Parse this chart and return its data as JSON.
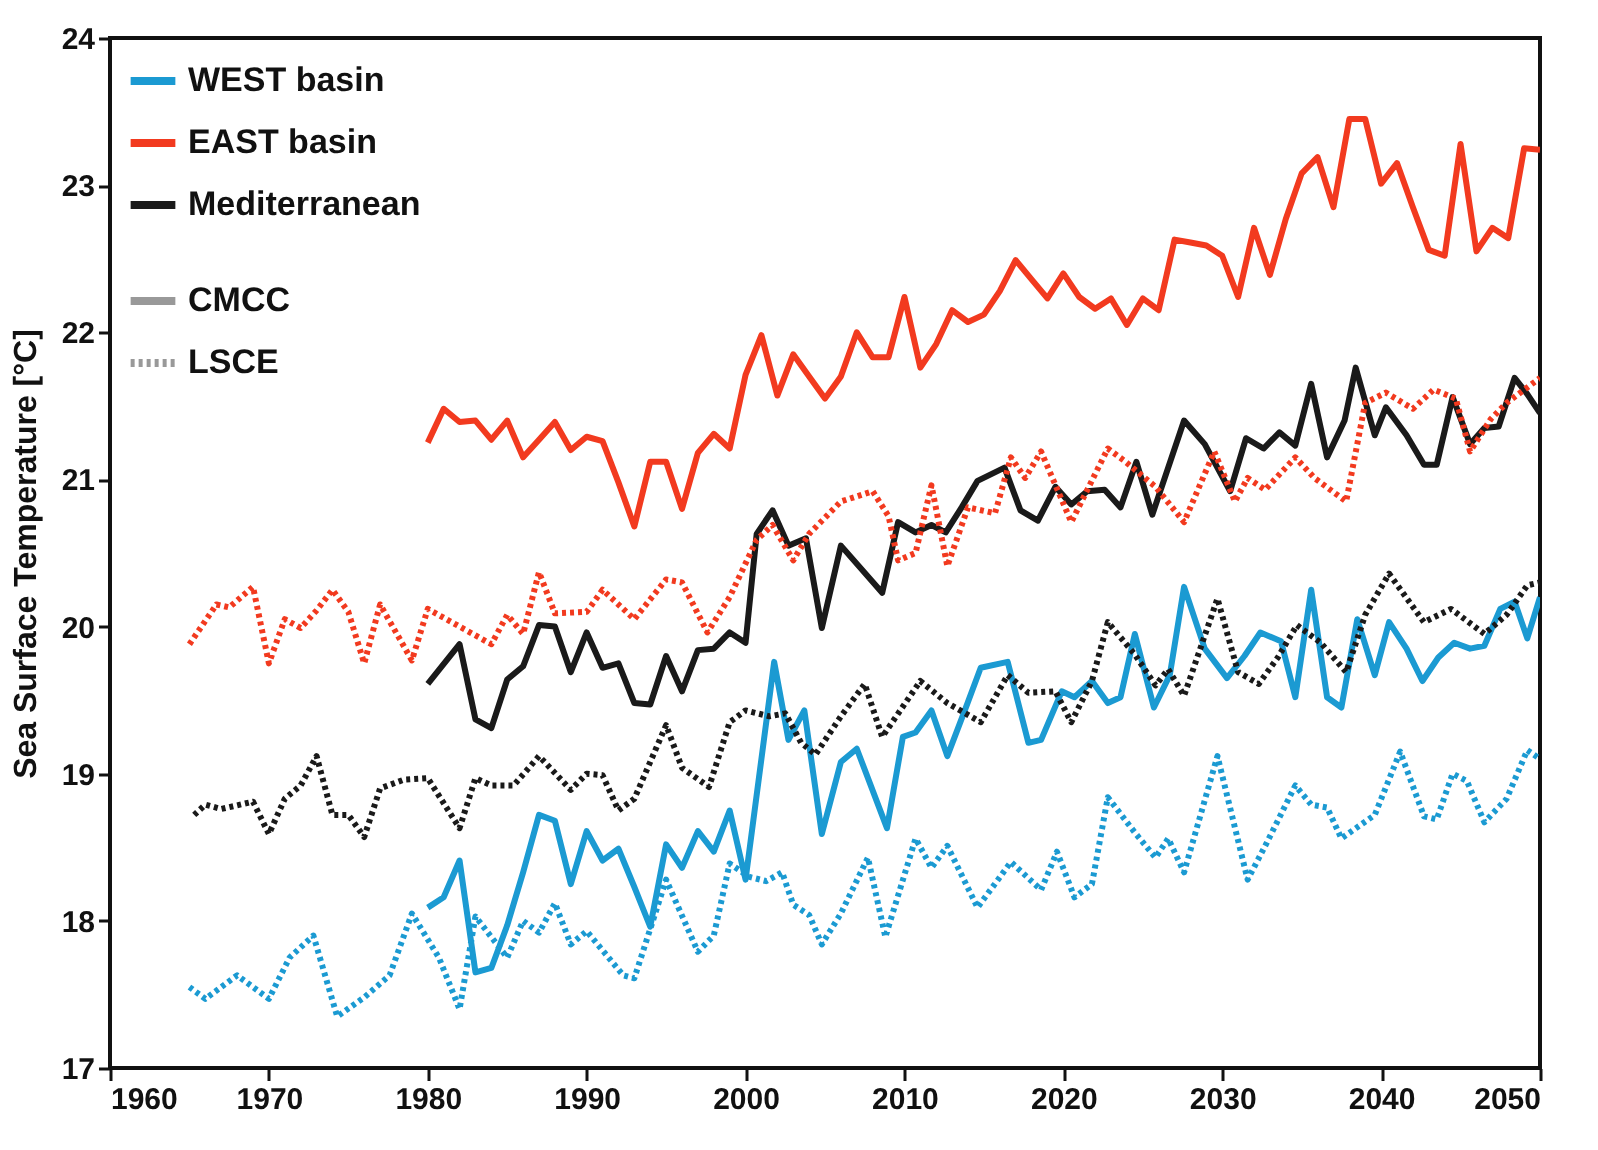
{
  "chart_data": {
    "type": "line",
    "ylabel": "Sea Surface Temperature [°C]",
    "xlim": [
      1960,
      2050
    ],
    "xticks": [
      1960,
      1970,
      1980,
      1990,
      2000,
      2010,
      2020,
      2030,
      2040,
      2050
    ],
    "ylim": [
      17,
      24
    ],
    "yticks": [
      17,
      18,
      19,
      20,
      21,
      22,
      23,
      24
    ],
    "grid": false,
    "legend": "top left",
    "marker": "none",
    "annotations": [
      "CMCC",
      "LSCE"
    ],
    "series": [
      {
        "name": "WEST basin",
        "color": "#1b9ad2",
        "line_style": "solid",
        "x": [
          1980,
          1981,
          1982,
          1983,
          1984,
          1985,
          1986,
          1987,
          1988,
          1989,
          1990,
          1991,
          1992,
          1993,
          1994,
          1995,
          1996,
          1997,
          1998,
          1999,
          2000,
          2001.8,
          2002.7,
          2003.7,
          2004.8,
          2006,
          2007,
          2008.9,
          2009.9,
          2010.7,
          2011.7,
          2012.7,
          2013.8,
          2014.8,
          2016.5,
          2017.8,
          2018.6,
          2019.9,
          2020.7,
          2021.8,
          2022.8,
          2023.6,
          2024.5,
          2025.7,
          2026.7,
          2027.6,
          2028.9,
          2030.3,
          2031.4,
          2032.4,
          2033.7,
          2034.6,
          2035.6,
          2036.6,
          2037.5,
          2038.5,
          2039.6,
          2040.5,
          2041.6,
          2042.6,
          2043.6,
          2044.6,
          2045.6,
          2046.5,
          2047.5,
          2048.4,
          2049.2,
          2050
        ],
        "values": [
          18.09,
          18.16,
          18.41,
          17.65,
          17.68,
          17.97,
          18.33,
          18.72,
          18.68,
          18.25,
          18.61,
          18.41,
          18.49,
          18.23,
          17.96,
          18.52,
          18.36,
          18.61,
          18.47,
          18.75,
          18.28,
          19.76,
          19.23,
          19.43,
          18.59,
          19.08,
          19.17,
          18.63,
          19.25,
          19.28,
          19.43,
          19.12,
          19.43,
          19.72,
          19.76,
          19.21,
          19.23,
          19.56,
          19.52,
          19.63,
          19.48,
          19.52,
          19.95,
          19.45,
          19.67,
          20.27,
          19.85,
          19.65,
          19.8,
          19.96,
          19.9,
          19.52,
          20.25,
          19.52,
          19.45,
          20.05,
          19.67,
          20.03,
          19.85,
          19.63,
          19.79,
          19.89,
          19.85,
          19.87,
          20.12,
          20.17,
          19.92,
          20.2
        ]
      },
      {
        "name": "EAST basin",
        "color": "#f23a1f",
        "line_style": "solid",
        "x": [
          1980,
          1981,
          1982,
          1983,
          1984,
          1985,
          1986,
          1987,
          1988,
          1989,
          1990,
          1991,
          1992,
          1993,
          1994,
          1995,
          1996,
          1997,
          1998,
          1999,
          2000,
          2001,
          2002,
          2003,
          2004,
          2005,
          2006,
          2007,
          2008,
          2009,
          2010,
          2011,
          2012,
          2013,
          2014,
          2015,
          2016,
          2017,
          2018,
          2019,
          2020,
          2021,
          2022,
          2023,
          2024,
          2025,
          2026,
          2027,
          2028,
          2029,
          2030,
          2031,
          2032,
          2033,
          2034,
          2035,
          2036,
          2037,
          2038,
          2039,
          2040,
          2041,
          2042,
          2043,
          2044,
          2045,
          2046,
          2047,
          2048,
          2049,
          2050
        ],
        "values": [
          21.25,
          21.48,
          21.39,
          21.4,
          21.27,
          21.4,
          21.15,
          21.27,
          21.39,
          21.2,
          21.29,
          21.26,
          20.98,
          20.68,
          21.12,
          21.12,
          20.8,
          21.18,
          21.31,
          21.21,
          21.71,
          21.98,
          21.57,
          21.85,
          21.7,
          21.55,
          21.7,
          22.0,
          21.83,
          21.83,
          22.24,
          21.76,
          21.92,
          22.15,
          22.07,
          22.12,
          22.28,
          22.49,
          22.36,
          22.23,
          22.4,
          22.24,
          22.16,
          22.23,
          22.05,
          22.23,
          22.15,
          22.63,
          22.61,
          22.59,
          22.52,
          22.24,
          22.71,
          22.39,
          22.77,
          23.08,
          23.19,
          22.85,
          23.45,
          23.45,
          23.01,
          23.15,
          22.85,
          22.56,
          22.52,
          23.28,
          22.55,
          22.71,
          22.64,
          23.25,
          23.24
        ]
      },
      {
        "name": "Mediterranean",
        "color": "#1a1a1a",
        "line_style": "solid",
        "x": [
          1980,
          1982,
          1983,
          1984,
          1985,
          1986,
          1987,
          1988,
          1989,
          1990,
          1991,
          1992,
          1993,
          1994,
          1995,
          1996,
          1997,
          1998,
          1999,
          2000,
          2000.7,
          2001.7,
          2002.7,
          2003.8,
          2004.8,
          2006,
          2008.6,
          2009.6,
          2010.7,
          2011.7,
          2012.6,
          2013.6,
          2014.6,
          2016.3,
          2017.3,
          2018.4,
          2019.5,
          2020.5,
          2021.5,
          2022.6,
          2023.6,
          2024.6,
          2025.6,
          2027.6,
          2028.9,
          2030.5,
          2031.5,
          2032.6,
          2033.6,
          2034.6,
          2035.6,
          2036.6,
          2037.7,
          2038.4,
          2039.6,
          2040.3,
          2041.6,
          2042.7,
          2043.5,
          2044.5,
          2045.6,
          2046.5,
          2047.4,
          2048.4,
          2049.2,
          2050
        ],
        "values": [
          19.61,
          19.88,
          19.37,
          19.31,
          19.64,
          19.73,
          20.01,
          20.0,
          19.69,
          19.96,
          19.72,
          19.75,
          19.48,
          19.47,
          19.8,
          19.56,
          19.84,
          19.85,
          19.96,
          19.89,
          20.63,
          20.79,
          20.55,
          20.6,
          19.99,
          20.55,
          20.23,
          20.71,
          20.64,
          20.69,
          20.64,
          20.81,
          20.99,
          21.08,
          20.79,
          20.72,
          20.95,
          20.83,
          20.92,
          20.93,
          20.81,
          21.12,
          20.76,
          21.4,
          21.24,
          20.92,
          21.28,
          21.21,
          21.32,
          21.23,
          21.65,
          21.15,
          21.4,
          21.76,
          21.3,
          21.49,
          21.3,
          21.1,
          21.1,
          21.56,
          21.24,
          21.35,
          21.36,
          21.69,
          21.58,
          21.45
        ]
      },
      {
        "color": "#1b9ad2",
        "line_style": "dotted",
        "x": [
          1965,
          1966,
          1968,
          1970,
          1971.3,
          1972.8,
          1974.3,
          1976,
          1977.6,
          1979,
          1980.7,
          1982,
          1983,
          1985,
          1986,
          1987,
          1988,
          1989,
          1990,
          1992.3,
          1993,
          1995,
          1997,
          1998,
          1999,
          2000.2,
          2001.3,
          2002.3,
          2003,
          2004,
          2004.8,
          2006,
          2007.7,
          2008.8,
          2010.7,
          2011.7,
          2012.7,
          2014.6,
          2016.7,
          2018.6,
          2019.6,
          2020.7,
          2021.8,
          2022.8,
          2024.5,
          2025.8,
          2026.6,
          2027.6,
          2029.7,
          2031.6,
          2032.8,
          2034.6,
          2035.6,
          2036.6,
          2037.5,
          2039.6,
          2041.2,
          2042.7,
          2043.5,
          2044.5,
          2045.4,
          2046.5,
          2047.9,
          2049.2,
          2050
        ],
        "values": [
          17.55,
          17.47,
          17.63,
          17.47,
          17.75,
          17.9,
          17.35,
          17.48,
          17.63,
          18.05,
          17.75,
          17.4,
          18.03,
          17.75,
          18.0,
          17.92,
          18.12,
          17.84,
          17.93,
          17.63,
          17.61,
          18.28,
          17.79,
          17.9,
          18.39,
          18.3,
          18.27,
          18.33,
          18.11,
          18.04,
          17.84,
          18.05,
          18.43,
          17.89,
          18.56,
          18.36,
          18.51,
          18.09,
          18.4,
          18.21,
          18.47,
          18.16,
          18.25,
          18.84,
          18.6,
          18.43,
          18.56,
          18.33,
          19.12,
          18.28,
          18.53,
          18.92,
          18.79,
          18.77,
          18.56,
          18.72,
          19.15,
          18.71,
          18.69,
          19.0,
          18.95,
          18.67,
          18.83,
          19.16,
          19.1
        ]
      },
      {
        "color": "#f23a1f",
        "line_style": "dotted",
        "x": [
          1965,
          1966.7,
          1967.5,
          1969,
          1970,
          1971,
          1972,
          1973,
          1974,
          1975,
          1976,
          1977,
          1979,
          1980,
          1982,
          1984,
          1985,
          1986,
          1987,
          1988,
          1990,
          1991,
          1993,
          1995,
          1996,
          1997.6,
          1999,
          2000.7,
          2001.7,
          2003,
          2004,
          2006,
          2008,
          2009,
          2009.6,
          2010.7,
          2011.7,
          2012.7,
          2014,
          2015.7,
          2016.7,
          2017.6,
          2018.6,
          2020.5,
          2022.8,
          2023.8,
          2025.8,
          2027.6,
          2029.5,
          2030.8,
          2031.6,
          2032.7,
          2034.6,
          2035.8,
          2037.8,
          2039,
          2040.3,
          2042,
          2043.3,
          2044.7,
          2045.6,
          2046.9,
          2047.9,
          2050
        ],
        "values": [
          19.88,
          20.15,
          20.13,
          20.27,
          19.75,
          20.05,
          19.99,
          20.11,
          20.25,
          20.1,
          19.75,
          20.15,
          19.77,
          20.12,
          20.0,
          19.88,
          20.08,
          19.95,
          20.37,
          20.09,
          20.1,
          20.25,
          20.05,
          20.32,
          20.3,
          19.96,
          20.2,
          20.59,
          20.69,
          20.45,
          20.63,
          20.85,
          20.92,
          20.75,
          20.45,
          20.5,
          20.96,
          20.41,
          20.81,
          20.77,
          21.15,
          21.01,
          21.19,
          20.71,
          21.21,
          21.13,
          20.95,
          20.71,
          21.19,
          20.85,
          21.01,
          20.93,
          21.15,
          21.01,
          20.85,
          21.52,
          21.59,
          21.48,
          21.61,
          21.55,
          21.19,
          21.41,
          21.52,
          21.69
        ]
      },
      {
        "color": "#1a1a1a",
        "line_style": "dotted",
        "x": [
          1965.3,
          1966,
          1967,
          1969,
          1970,
          1971,
          1972,
          1973,
          1974,
          1975,
          1976,
          1977,
          1978.5,
          1980,
          1981,
          1982,
          1983,
          1984,
          1985.4,
          1987,
          1989,
          1990,
          1991,
          1992,
          1993,
          1995,
          1996,
          1997.7,
          1999,
          2000,
          2001.5,
          2002.5,
          2003.5,
          2004.4,
          2006,
          2007.5,
          2008.6,
          2011,
          2012.7,
          2014.8,
          2016.5,
          2017.8,
          2019.5,
          2020.5,
          2021.8,
          2022.8,
          2024.5,
          2025.8,
          2026.6,
          2027.6,
          2029.7,
          2031,
          2032.3,
          2033.5,
          2034.7,
          2036.2,
          2037.8,
          2039,
          2040.5,
          2042.7,
          2044.4,
          2046.5,
          2047.9,
          2049.2,
          2050
        ],
        "values": [
          18.72,
          18.79,
          18.76,
          18.81,
          18.59,
          18.83,
          18.92,
          19.12,
          18.72,
          18.72,
          18.57,
          18.9,
          18.96,
          18.97,
          18.8,
          18.63,
          18.97,
          18.92,
          18.92,
          19.12,
          18.89,
          19.0,
          18.99,
          18.75,
          18.83,
          19.33,
          19.04,
          18.91,
          19.35,
          19.43,
          19.39,
          19.41,
          19.21,
          19.13,
          19.39,
          19.61,
          19.25,
          19.63,
          19.48,
          19.35,
          19.67,
          19.55,
          19.56,
          19.35,
          19.63,
          20.03,
          19.81,
          19.6,
          19.71,
          19.53,
          20.19,
          19.69,
          19.61,
          19.79,
          20.01,
          19.89,
          19.69,
          20.08,
          20.36,
          20.03,
          20.12,
          19.95,
          20.08,
          20.28,
          20.3
        ]
      }
    ]
  }
}
